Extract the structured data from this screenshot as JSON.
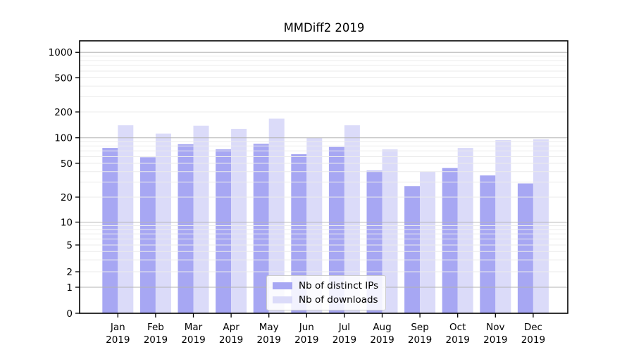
{
  "chart_data": {
    "type": "bar",
    "title": "MMDiff2 2019",
    "yscale": "symlog",
    "grid": true,
    "ylim": [
      0,
      1370
    ],
    "yticks": [
      0,
      1,
      2,
      5,
      10,
      20,
      50,
      100,
      200,
      500,
      1000
    ],
    "categories": [
      "Jan",
      "Feb",
      "Mar",
      "Apr",
      "May",
      "Jun",
      "Jul",
      "Aug",
      "Sep",
      "Oct",
      "Nov",
      "Dec"
    ],
    "category_year": "2019",
    "series": [
      {
        "name": "Nb of distinct IPs",
        "slug": "distinct-ips",
        "color": "#a7a7f3",
        "values": [
          76,
          59,
          84,
          73,
          85,
          64,
          78,
          41,
          27,
          44,
          36,
          29
        ]
      },
      {
        "name": "Nb of downloads",
        "slug": "downloads",
        "color": "#dbdbf9",
        "values": [
          140,
          112,
          138,
          127,
          167,
          100,
          140,
          73,
          40,
          76,
          94,
          96
        ]
      }
    ],
    "legend_position": "inside lower-center",
    "xlabel": "",
    "ylabel": ""
  },
  "colors": {
    "background": "#ffffff",
    "spine": "#000000",
    "grid_major": "#b3b3b3",
    "grid_minor": "#ebebeb",
    "tick_label": "#000000",
    "legend_border": "#cccccc",
    "legend_bg": "rgba(255,255,255,0.85)"
  }
}
